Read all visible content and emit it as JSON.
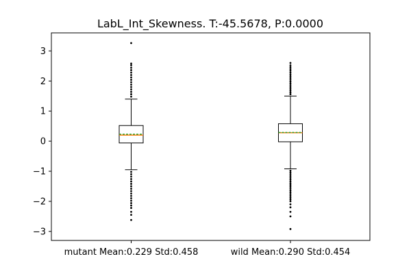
{
  "chart_data": {
    "type": "box",
    "title": "LabL_Int_Skewness. T:-45.5678, P:0.0000",
    "xlabel": "",
    "ylabel": "",
    "ylim": [
      -3.3,
      3.6
    ],
    "yticks": [
      -3,
      -2,
      -1,
      0,
      1,
      2,
      3
    ],
    "ytick_labels": [
      "−3",
      "−2",
      "−1",
      "0",
      "1",
      "2",
      "3"
    ],
    "grid": false,
    "categories": [
      "mutant Mean:0.229 Std:0.458",
      "wild Mean:0.290 Std:0.454"
    ],
    "boxes": [
      {
        "label": "mutant Mean:0.229 Std:0.458",
        "q1": -0.06,
        "median": 0.2,
        "mean": 0.229,
        "q3": 0.52,
        "whisker_low": -0.95,
        "whisker_high": 1.4,
        "outliers_high": [
          1.48,
          1.56,
          1.64,
          1.72,
          1.8,
          1.88,
          1.96,
          2.04,
          2.12,
          2.2,
          2.28,
          2.36,
          2.44,
          2.52,
          2.58,
          3.26
        ],
        "outliers_low": [
          -1.02,
          -1.1,
          -1.18,
          -1.26,
          -1.34,
          -1.42,
          -1.5,
          -1.58,
          -1.66,
          -1.74,
          -1.82,
          -1.9,
          -1.98,
          -2.06,
          -2.14,
          -2.22,
          -2.35,
          -2.45,
          -2.62
        ]
      },
      {
        "label": "wild Mean:0.290 Std:0.454",
        "q1": -0.02,
        "median": 0.28,
        "mean": 0.29,
        "q3": 0.58,
        "whisker_low": -0.92,
        "whisker_high": 1.5,
        "outliers_high": [
          1.56,
          1.62,
          1.68,
          1.74,
          1.8,
          1.86,
          1.92,
          1.98,
          2.04,
          2.1,
          2.16,
          2.22,
          2.28,
          2.34,
          2.4,
          2.46,
          2.52,
          2.6
        ],
        "outliers_low": [
          -0.98,
          -1.04,
          -1.1,
          -1.16,
          -1.22,
          -1.28,
          -1.34,
          -1.4,
          -1.46,
          -1.52,
          -1.58,
          -1.64,
          -1.7,
          -1.76,
          -1.82,
          -1.88,
          -1.94,
          -2.0,
          -2.1,
          -2.2,
          -2.35,
          -2.5,
          -2.92
        ]
      }
    ],
    "colors": {
      "box": "#000000",
      "median": "#ff7f0e",
      "mean": "#2ca02c",
      "outlier": "#000000"
    }
  }
}
